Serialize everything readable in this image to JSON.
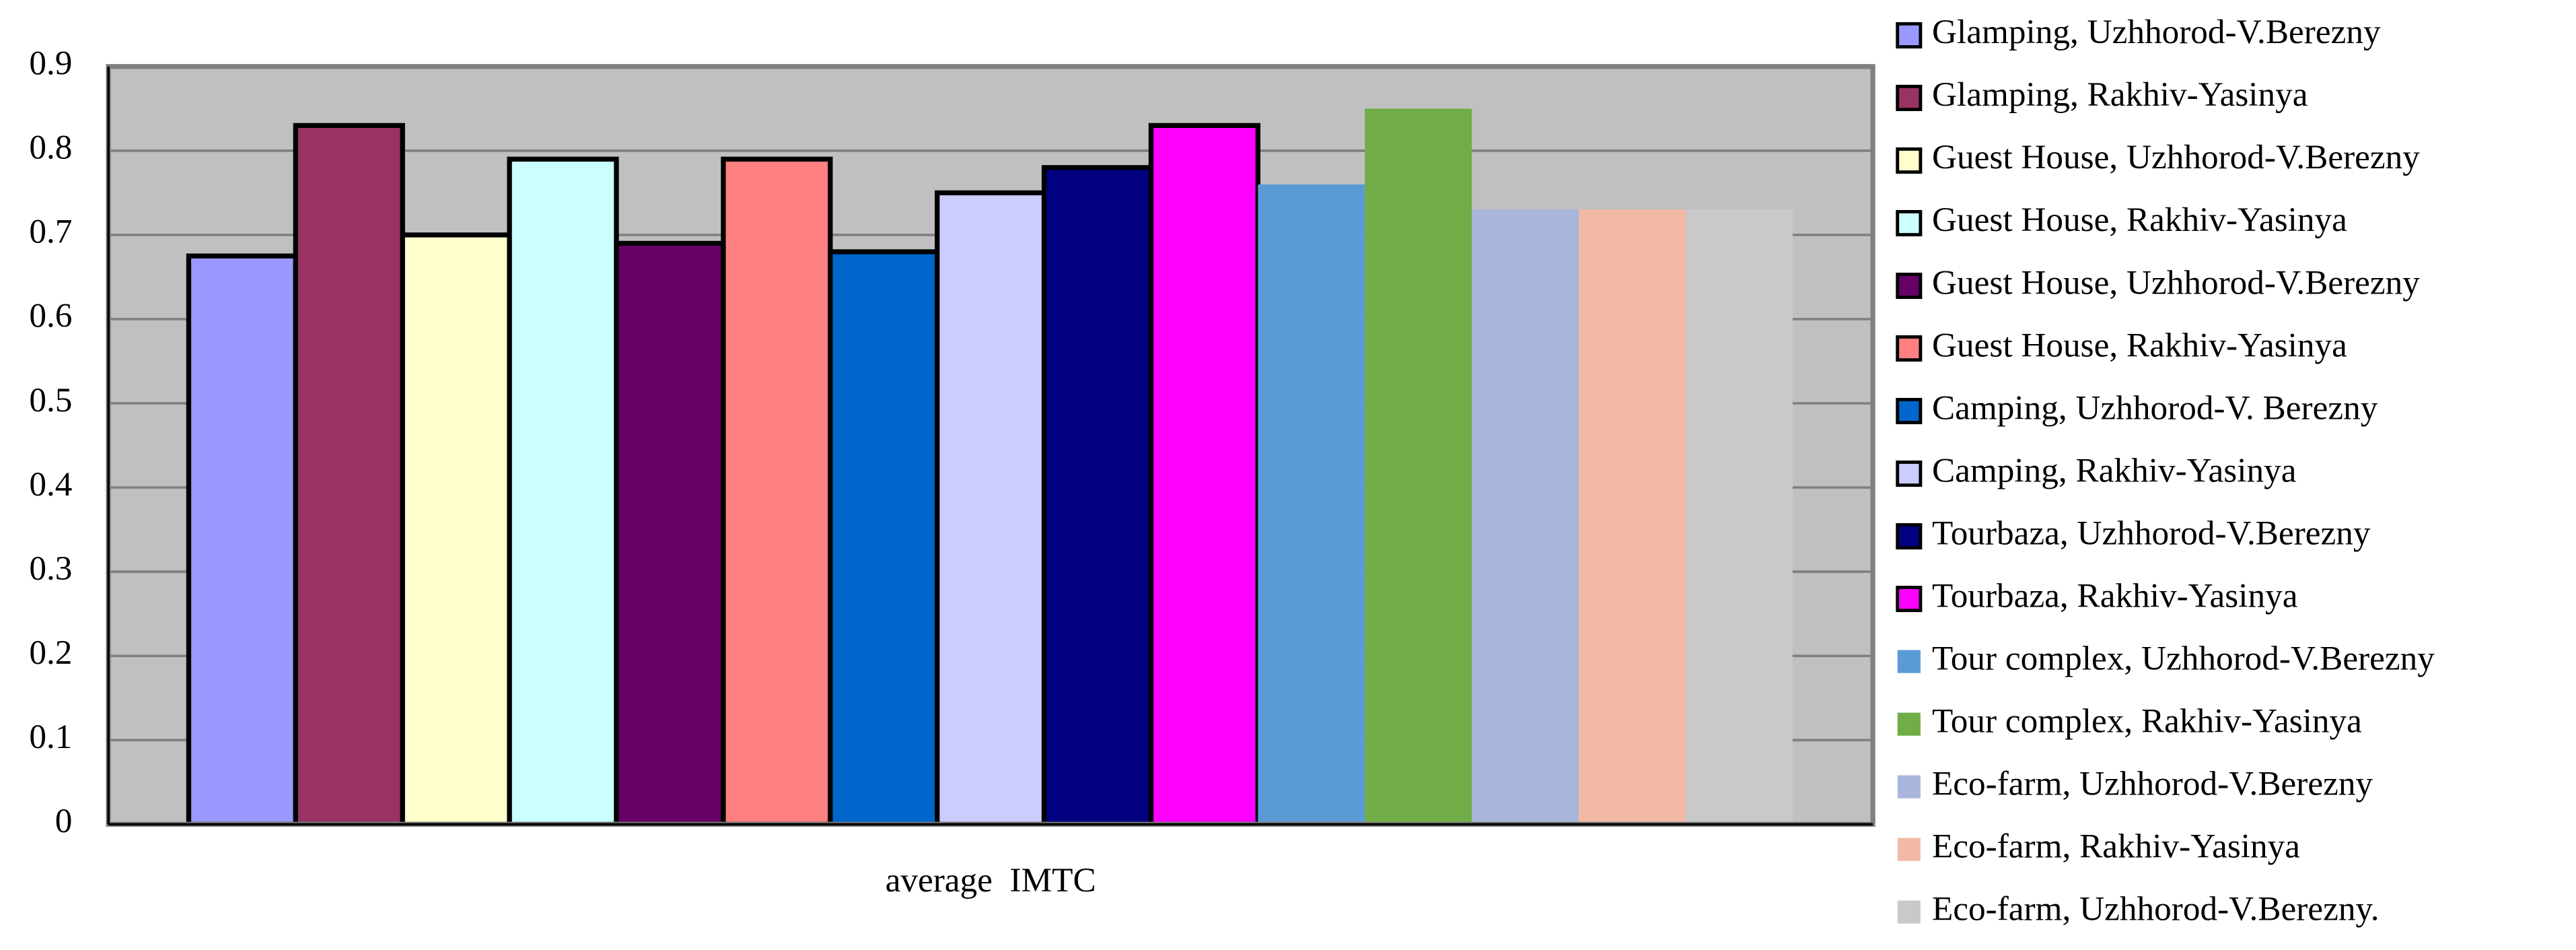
{
  "chart_data": {
    "type": "bar",
    "x_label": "average  IMTC",
    "categories": [
      "average  IMTC"
    ],
    "ylim": [
      0,
      0.9
    ],
    "yticks": [
      0,
      0.1,
      0.2,
      0.3,
      0.4,
      0.5,
      0.6,
      0.7,
      0.8,
      0.9
    ],
    "grid": true,
    "legend": "right",
    "series": [
      {
        "name": "Glamping, Uzhhorod-V.Berezny",
        "color": "#9999ff",
        "edgecolor": "#000000",
        "values": [
          0.675
        ]
      },
      {
        "name": "Glamping, Rakhiv-Yasinya",
        "color": "#993366",
        "edgecolor": "#000000",
        "values": [
          0.83
        ]
      },
      {
        "name": "Guest House, Uzhhorod-V.Berezny",
        "color": "#ffffcc",
        "edgecolor": "#000000",
        "values": [
          0.7
        ]
      },
      {
        "name": "Guest House, Rakhiv-Yasinya",
        "color": "#ccffff",
        "edgecolor": "#000000",
        "values": [
          0.79
        ]
      },
      {
        "name": "Guest House, Uzhhorod-V.Berezny",
        "color": "#660066",
        "edgecolor": "#000000",
        "values": [
          0.69
        ]
      },
      {
        "name": "Guest House, Rakhiv-Yasinya",
        "color": "#ff8080",
        "edgecolor": "#000000",
        "values": [
          0.79
        ]
      },
      {
        "name": "Camping, Uzhhorod-V. Berezny",
        "color": "#0066cc",
        "edgecolor": "#000000",
        "values": [
          0.68
        ]
      },
      {
        "name": "Camping, Rakhiv-Yasinya",
        "color": "#ccccff",
        "edgecolor": "#000000",
        "values": [
          0.75
        ]
      },
      {
        "name": "Tourbaza, Uzhhorod-V.Berezny",
        "color": "#000080",
        "edgecolor": "#000000",
        "values": [
          0.78
        ]
      },
      {
        "name": "Tourbaza, Rakhiv-Yasinya",
        "color": "#ff00ff",
        "edgecolor": "#000000",
        "values": [
          0.83
        ]
      },
      {
        "name": "Tour complex, Uzhhorod-V.Berezny",
        "color": "#5b9bd5",
        "values": [
          0.76
        ]
      },
      {
        "name": "Tour complex, Rakhiv-Yasinya",
        "color": "#70ad47",
        "values": [
          0.85
        ]
      },
      {
        "name": "Eco-farm, Uzhhorod-V.Berezny",
        "color": "#a9b6dc",
        "values": [
          0.73
        ]
      },
      {
        "name": "Eco-farm, Rakhiv-Yasinya",
        "color": "#f4b9a4",
        "values": [
          0.73
        ]
      },
      {
        "name": "Eco-farm, Uzhhorod-V.Berezny.",
        "color": "#c9c9c9",
        "values": [
          0.73
        ]
      }
    ]
  }
}
